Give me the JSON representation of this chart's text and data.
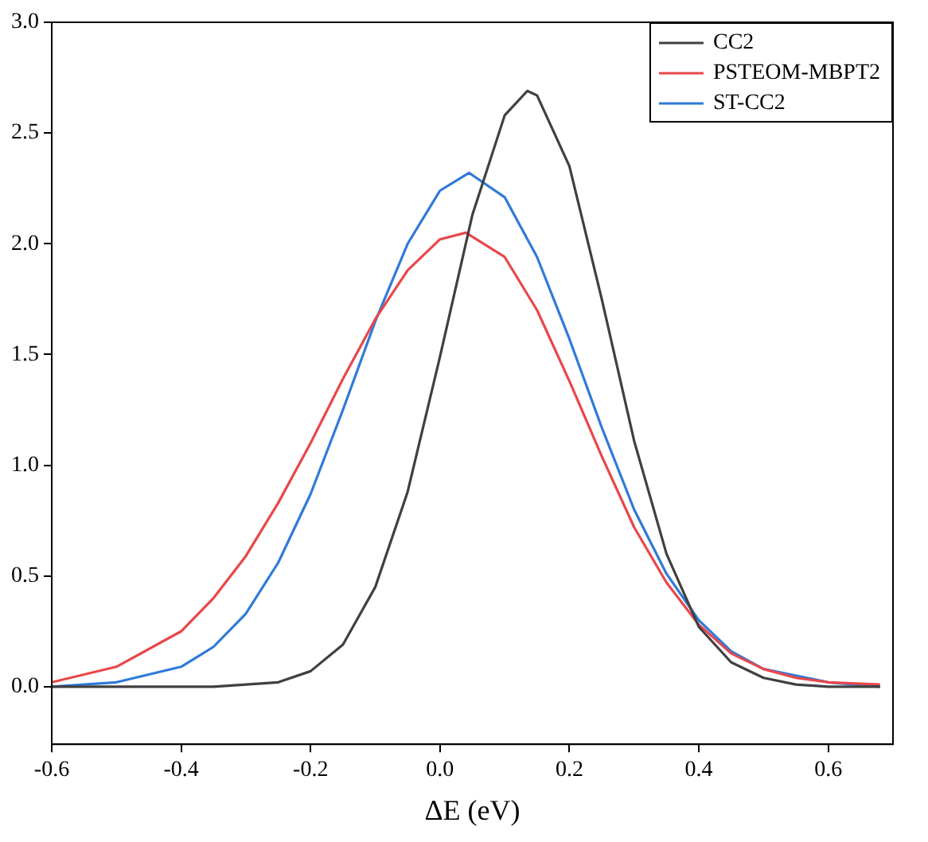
{
  "chart_data": {
    "type": "line",
    "xlabel": "ΔE (eV)",
    "xlim": [
      -0.6,
      0.7
    ],
    "ylim": [
      -0.26,
      3.0
    ],
    "xticks": [
      -0.6,
      -0.4,
      -0.2,
      {
        "value": 0,
        "label": "0.0"
      },
      0.2,
      0.4,
      0.6
    ],
    "yticks": [
      {
        "value": 0,
        "label": "0.0"
      },
      0.5,
      {
        "value": 1,
        "label": "1.0"
      },
      1.5,
      {
        "value": 2,
        "label": "2.0"
      },
      2.5,
      {
        "value": 3,
        "label": "3.0"
      }
    ],
    "grid": false,
    "legend": "top right",
    "marker": "none",
    "line_style": "solid",
    "series": [
      {
        "name": "CC2",
        "color": "#404040",
        "x": [
          -0.6,
          -0.5,
          -0.4,
          -0.35,
          -0.3,
          -0.25,
          -0.2,
          -0.15,
          -0.1,
          -0.05,
          0,
          0.05,
          0.1,
          0.135,
          0.15,
          0.2,
          0.25,
          0.3,
          0.35,
          0.4,
          0.45,
          0.5,
          0.55,
          0.6,
          0.68
        ],
        "values": [
          0,
          0,
          0,
          0,
          0.01,
          0.02,
          0.07,
          0.19,
          0.45,
          0.88,
          1.49,
          2.13,
          2.58,
          2.69,
          2.67,
          2.35,
          1.75,
          1.11,
          0.6,
          0.27,
          0.11,
          0.04,
          0.01,
          0,
          0
        ]
      },
      {
        "name": "PSTEOM-MBPT2",
        "color": "#e8474a",
        "x": [
          -0.6,
          -0.5,
          -0.4,
          -0.35,
          -0.3,
          -0.25,
          -0.2,
          -0.15,
          -0.1,
          -0.05,
          0,
          0.04,
          0.1,
          0.15,
          0.2,
          0.25,
          0.3,
          0.35,
          0.4,
          0.45,
          0.5,
          0.55,
          0.6,
          0.68
        ],
        "values": [
          0.02,
          0.09,
          0.25,
          0.4,
          0.59,
          0.83,
          1.1,
          1.39,
          1.66,
          1.88,
          2.02,
          2.05,
          1.94,
          1.7,
          1.38,
          1.04,
          0.72,
          0.47,
          0.28,
          0.15,
          0.08,
          0.04,
          0.02,
          0.01
        ]
      },
      {
        "name": "ST-CC2",
        "color": "#2f7ad9",
        "x": [
          -0.6,
          -0.5,
          -0.4,
          -0.35,
          -0.3,
          -0.25,
          -0.2,
          -0.15,
          -0.1,
          -0.05,
          0,
          0.045,
          0.1,
          0.15,
          0.2,
          0.25,
          0.3,
          0.35,
          0.4,
          0.45,
          0.5,
          0.6,
          0.68
        ],
        "values": [
          0,
          0.02,
          0.09,
          0.18,
          0.33,
          0.56,
          0.87,
          1.25,
          1.65,
          2.0,
          2.24,
          2.32,
          2.21,
          1.94,
          1.57,
          1.17,
          0.8,
          0.51,
          0.3,
          0.16,
          0.08,
          0.02,
          0
        ]
      }
    ]
  }
}
